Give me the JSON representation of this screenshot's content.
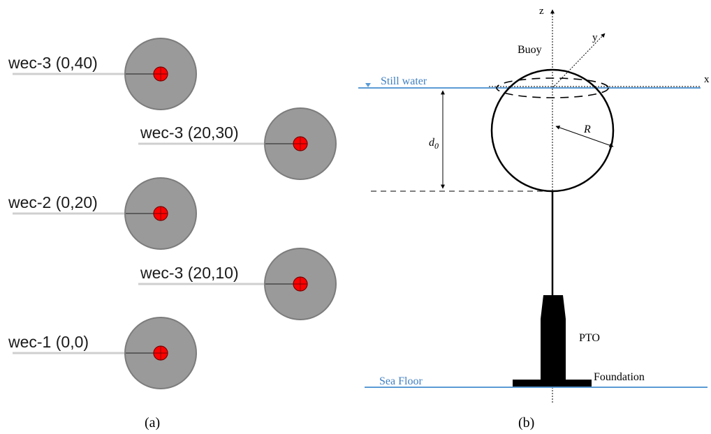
{
  "panel_a": {
    "caption": "(a)",
    "wecs": [
      {
        "label": "wec-3 (0,40)"
      },
      {
        "label": "wec-3 (20,30)"
      },
      {
        "label": "wec-2 (0,20)"
      },
      {
        "label": "wec-3 (20,10)"
      },
      {
        "label": "wec-1 (0,0)"
      }
    ],
    "colors": {
      "buoy_fill": "#9a9a9a",
      "buoy_stroke": "#7c7c7c",
      "center_fill": "#ff0000",
      "line": "#5c5c5c"
    }
  },
  "panel_b": {
    "caption": "(b)",
    "axes": {
      "z": "z",
      "y": "y",
      "x": "x"
    },
    "labels": {
      "buoy": "Buoy",
      "still_water": "Still water",
      "sea_floor": "Sea Floor",
      "pto": "PTO",
      "foundation": "Foundation",
      "radius": "R",
      "draft_main": "d",
      "draft_sub": "0"
    },
    "colors": {
      "water_line": "#5b9bd5",
      "water_text": "#3f7fc2",
      "ink": "#000000"
    }
  }
}
